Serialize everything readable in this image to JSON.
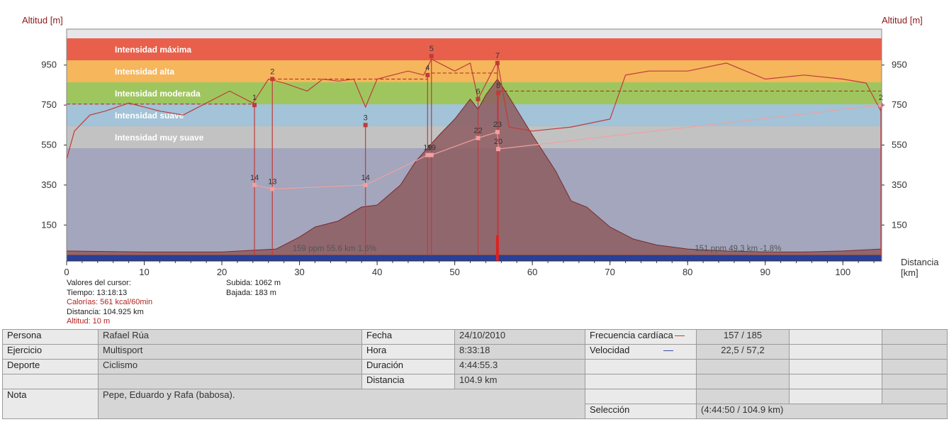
{
  "axes": {
    "y_title_left": "Altitud [m]",
    "y_title_right": "Altitud [m]",
    "x_title": "Distancia\n[km]"
  },
  "chart_data": {
    "type": "area",
    "xlabel": "Distancia [km]",
    "ylabel": "Altitud [m]",
    "xlim": [
      0,
      105
    ],
    "ylim": [
      -30,
      1130
    ],
    "x_ticks": [
      0,
      10,
      20,
      30,
      40,
      50,
      60,
      70,
      80,
      90,
      100
    ],
    "y_ticks": [
      150,
      350,
      550,
      750,
      950
    ],
    "zones": [
      {
        "name": "Intensidad máxima",
        "color": "#e8604c"
      },
      {
        "name": "Intensidad alta",
        "color": "#f5b65c"
      },
      {
        "name": "Intensidad moderada",
        "color": "#9fc65e"
      },
      {
        "name": "Intensidad suave",
        "color": "#a2c3d8"
      },
      {
        "name": "Intensidad muy suave",
        "color": "#c2c2c2"
      }
    ],
    "series": [
      {
        "name": "Altitud",
        "color": "#8e5c60",
        "x": [
          0,
          10,
          20,
          27,
          30,
          32,
          35,
          38,
          40,
          43,
          45,
          48,
          50,
          52,
          53,
          54,
          55.5,
          57,
          60,
          63,
          65,
          67,
          70,
          73,
          76,
          80,
          85,
          90,
          95,
          100,
          104.9
        ],
        "y": [
          20,
          15,
          15,
          30,
          90,
          140,
          170,
          240,
          250,
          350,
          470,
          600,
          680,
          780,
          730,
          800,
          880,
          790,
          600,
          420,
          270,
          240,
          140,
          80,
          50,
          30,
          20,
          15,
          15,
          20,
          30
        ]
      },
      {
        "name": "Frecuencia cardíaca",
        "color": "#c03b3b",
        "x": [
          0,
          1,
          3,
          5,
          8,
          12,
          15,
          18,
          21,
          24,
          26,
          28,
          31,
          33,
          35,
          37,
          38.5,
          40,
          42,
          44,
          46,
          47,
          50,
          52,
          53,
          55.5,
          57,
          60,
          65,
          70,
          72,
          75,
          80,
          85,
          90,
          95,
          100,
          103,
          104.9
        ],
        "y": [
          480,
          620,
          700,
          720,
          760,
          720,
          700,
          760,
          820,
          760,
          880,
          860,
          820,
          880,
          870,
          880,
          740,
          880,
          900,
          920,
          900,
          980,
          920,
          960,
          780,
          970,
          640,
          620,
          640,
          680,
          900,
          920,
          920,
          960,
          880,
          900,
          880,
          860,
          720
        ]
      }
    ],
    "markers": [
      {
        "label": "1",
        "x": 24.2,
        "y": 750
      },
      {
        "label": "2",
        "x": 26.5,
        "y": 880
      },
      {
        "label": "3",
        "x": 38.5,
        "y": 650
      },
      {
        "label": "4",
        "x": 46.5,
        "y": 900
      },
      {
        "label": "5",
        "x": 47.0,
        "y": 995
      },
      {
        "label": "6",
        "x": 53.0,
        "y": 780
      },
      {
        "label": "7",
        "x": 55.5,
        "y": 960
      },
      {
        "label": "8",
        "x": 55.6,
        "y": 810
      },
      {
        "label": "2",
        "x": 104.9,
        "y": 750
      }
    ],
    "speed_points": [
      {
        "label": "14",
        "x": 24.2,
        "y": 350
      },
      {
        "label": "13",
        "x": 26.5,
        "y": 330
      },
      {
        "label": "14",
        "x": 38.5,
        "y": 350
      },
      {
        "label": "19",
        "x": 46.5,
        "y": 500
      },
      {
        "label": "19",
        "x": 47.0,
        "y": 500
      },
      {
        "label": "22",
        "x": 53.0,
        "y": 585
      },
      {
        "label": "23",
        "x": 55.5,
        "y": 615
      },
      {
        "label": "20",
        "x": 55.6,
        "y": 530
      },
      {
        "label": "",
        "x": 104.9,
        "y": 750
      }
    ],
    "avg_lines": [
      {
        "from": 0,
        "to": 24.2,
        "y": 755
      },
      {
        "from": 26.5,
        "to": 46.5,
        "y": 880
      },
      {
        "from": 47.0,
        "to": 55.5,
        "y": 910
      },
      {
        "from": 55.6,
        "to": 104.9,
        "y": 820
      }
    ],
    "annotations": [
      {
        "text": "159 ppm 55.6 km 1.6%",
        "x": 34.5,
        "y": 20
      },
      {
        "text": "151 ppm 49.3 km -1.8%",
        "x": 86.5,
        "y": 20
      }
    ],
    "cursor_x": 55.5
  },
  "cursor": {
    "title": "Valores del cursor:",
    "tiempo": "Tiempo: 13:18:13",
    "calorias": "Calorías: 561 kcal/60min",
    "distancia": "Distancia: 104.925 km",
    "altitud": "Altitud: 10 m",
    "subida": "Subida: 1062 m",
    "bajada": "Bajada: 183 m"
  },
  "details": {
    "persona_label": "Persona",
    "persona": "Rafael Rúa",
    "ejercicio_label": "Ejercicio",
    "ejercicio": "Multisport",
    "deporte_label": "Deporte",
    "deporte": "Ciclismo",
    "nota_label": "Nota",
    "nota": "Pepe, Eduardo y Rafa (babosa).",
    "fecha_label": "Fecha",
    "fecha": "24/10/2010",
    "hora_label": "Hora",
    "hora": "8:33:18",
    "duracion_label": "Duración",
    "duracion": "4:44:55.3",
    "distancia_label": "Distancia",
    "distancia": "104.9 km",
    "fc_label": "Frecuencia cardíaca",
    "fc": "157 / 185",
    "fc_color": "#c03b3b",
    "vel_label": "Velocidad",
    "vel": "22,5 / 57,2",
    "vel_color": "#3a4aa8",
    "seleccion_label": "Selección",
    "seleccion": "(4:44:50 / 104.9 km)"
  }
}
